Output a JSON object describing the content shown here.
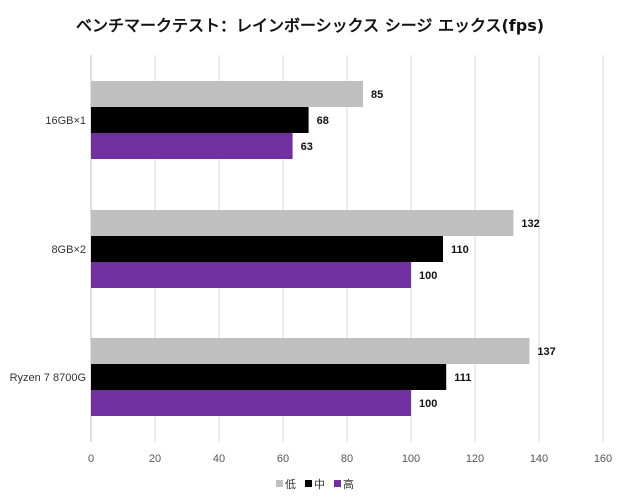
{
  "chart_data": {
    "type": "bar",
    "orientation": "horizontal",
    "title": "ベンチマークテスト：レインボーシックス シージ エックス(fps)",
    "categories": [
      "16GB×1",
      "8GB×2",
      "Ryzen 7 8700G"
    ],
    "series": [
      {
        "name": "低",
        "color": "#bfbfbf",
        "values": [
          85,
          132,
          137
        ]
      },
      {
        "name": "中",
        "color": "#000000",
        "values": [
          68,
          110,
          111
        ]
      },
      {
        "name": "高",
        "color": "#7030a0",
        "values": [
          63,
          100,
          100
        ]
      }
    ],
    "xlim": [
      0,
      160
    ],
    "xticks": [
      "0",
      "20",
      "40",
      "60",
      "80",
      "100",
      "120",
      "140",
      "160"
    ],
    "xlabel": "",
    "ylabel": "",
    "grid": true,
    "legend": "bottom"
  }
}
